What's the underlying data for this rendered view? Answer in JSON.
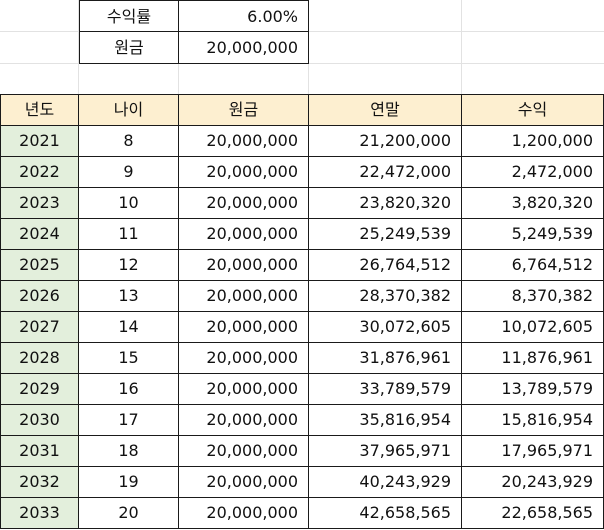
{
  "params": {
    "rate_label": "수익률",
    "rate_value": "6.00%",
    "principal_label": "원금",
    "principal_value": "20,000,000"
  },
  "table": {
    "headers": [
      "년도",
      "나이",
      "원금",
      "연말",
      "수익"
    ],
    "rows": [
      [
        "2021",
        "8",
        "20,000,000",
        "21,200,000",
        "1,200,000"
      ],
      [
        "2022",
        "9",
        "20,000,000",
        "22,472,000",
        "2,472,000"
      ],
      [
        "2023",
        "10",
        "20,000,000",
        "23,820,320",
        "3,820,320"
      ],
      [
        "2024",
        "11",
        "20,000,000",
        "25,249,539",
        "5,249,539"
      ],
      [
        "2025",
        "12",
        "20,000,000",
        "26,764,512",
        "6,764,512"
      ],
      [
        "2026",
        "13",
        "20,000,000",
        "28,370,382",
        "8,370,382"
      ],
      [
        "2027",
        "14",
        "20,000,000",
        "30,072,605",
        "10,072,605"
      ],
      [
        "2028",
        "15",
        "20,000,000",
        "31,876,961",
        "11,876,961"
      ],
      [
        "2029",
        "16",
        "20,000,000",
        "33,789,579",
        "13,789,579"
      ],
      [
        "2030",
        "17",
        "20,000,000",
        "35,816,954",
        "15,816,954"
      ],
      [
        "2031",
        "18",
        "20,000,000",
        "37,965,971",
        "17,965,971"
      ],
      [
        "2032",
        "19",
        "20,000,000",
        "40,243,929",
        "20,243,929"
      ],
      [
        "2033",
        "20",
        "20,000,000",
        "42,658,565",
        "22,658,565"
      ]
    ]
  },
  "colors": {
    "header_bg": "#fdefd0",
    "year_bg": "#e3efdc",
    "border": "#1a1a1a",
    "gridline": "#e2e2e2"
  }
}
